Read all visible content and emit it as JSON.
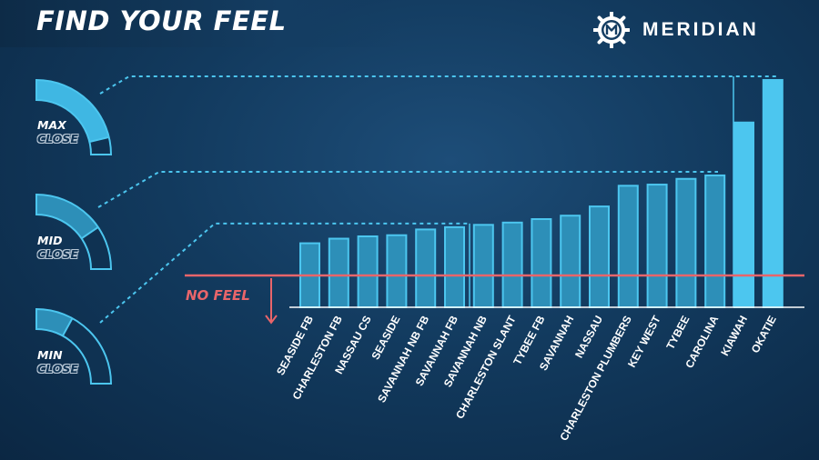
{
  "header": {
    "title": "FIND YOUR FEEL"
  },
  "brand": {
    "name": "MERIDIAN",
    "logo_icon": "meridian-ship-wheel-icon"
  },
  "gauges": [
    {
      "line1": "MAX",
      "line2": "CLOSE",
      "level": 0.85
    },
    {
      "line1": "MID",
      "line2": "CLOSE",
      "level": 0.62
    },
    {
      "line1": "MIN",
      "line2": "CLOSE",
      "level": 0.32
    }
  ],
  "threshold": {
    "label": "NO FEEL"
  },
  "colors": {
    "accent": "#4cc6ef",
    "bar_fill": "#2d8fb8",
    "bar_fill_bright": "#4cc6ef",
    "no_feel_red": "#e8656a",
    "white": "#ffffff"
  },
  "chart_data": {
    "type": "bar",
    "categories": [
      "SEASIDE FB",
      "CHARLESTON FB",
      "NASSAU CS",
      "SEASIDE",
      "SAVANNAH NB FB",
      "SAVANNAH FB",
      "SAVANNAH NB",
      "CHARLESTON SLANT",
      "TYBEE FB",
      "SAVANNAH",
      "NASSAU",
      "CHARLESTON PLUMBERS",
      "KEY WEST",
      "TYBEE",
      "CAROLINA",
      "KIAWAH",
      "OKATIE"
    ],
    "values": [
      1.4,
      1.6,
      1.7,
      1.75,
      2.0,
      2.1,
      2.2,
      2.3,
      2.45,
      2.6,
      3.0,
      3.9,
      3.95,
      4.2,
      4.35,
      6.65,
      8.5
    ],
    "highlight_categories": [
      "KIAWAH",
      "OKATIE"
    ],
    "threshold_value": 0,
    "levels": [
      {
        "name": "MIN",
        "value": 2.1
      },
      {
        "name": "MID",
        "value": 4.35
      },
      {
        "name": "MAX",
        "value": 8.5
      }
    ],
    "ylim": [
      -1,
      8.5
    ],
    "title": "",
    "xlabel": "",
    "ylabel": ""
  }
}
